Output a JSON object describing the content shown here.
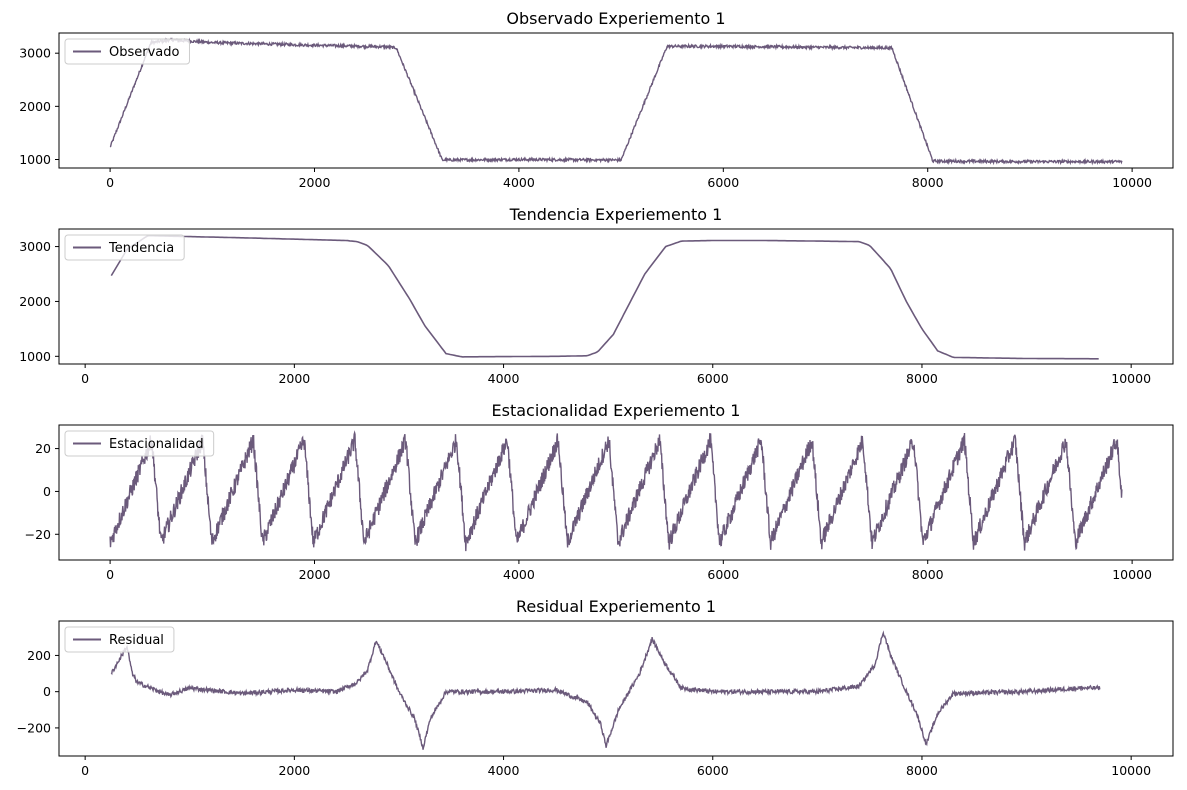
{
  "series_color": "#6b5a7b",
  "chart_data": [
    {
      "type": "line",
      "title": "Observado  Experiemento 1",
      "legend": {
        "label": "Observado",
        "loc": "upper-left"
      },
      "xlim": [
        -500,
        10400
      ],
      "ylim": [
        840,
        3380
      ],
      "xticks": [
        0,
        2000,
        4000,
        6000,
        8000,
        10000
      ],
      "yticks": [
        1000,
        2000,
        3000
      ],
      "noise": 25,
      "points": [
        [
          0,
          1230
        ],
        [
          400,
          3200
        ],
        [
          600,
          3250
        ],
        [
          1000,
          3200
        ],
        [
          2000,
          3150
        ],
        [
          2700,
          3120
        ],
        [
          2800,
          3100
        ],
        [
          3250,
          990
        ],
        [
          4000,
          1000
        ],
        [
          5000,
          990
        ],
        [
          5450,
          3130
        ],
        [
          6000,
          3130
        ],
        [
          7000,
          3110
        ],
        [
          7650,
          3100
        ],
        [
          8050,
          970
        ],
        [
          9000,
          960
        ],
        [
          9900,
          960
        ]
      ]
    },
    {
      "type": "line",
      "title": "Tendencia  Experiemento 1",
      "legend": {
        "label": "Tendencia",
        "loc": "upper-left"
      },
      "xlim": [
        -250,
        10400
      ],
      "ylim": [
        860,
        3320
      ],
      "xticks": [
        0,
        2000,
        4000,
        6000,
        8000,
        10000
      ],
      "yticks": [
        1000,
        2000,
        3000
      ],
      "noise": 0,
      "points": [
        [
          250,
          2470
        ],
        [
          400,
          2950
        ],
        [
          600,
          3200
        ],
        [
          800,
          3190
        ],
        [
          1500,
          3160
        ],
        [
          2500,
          3110
        ],
        [
          2600,
          3090
        ],
        [
          2700,
          3020
        ],
        [
          2900,
          2650
        ],
        [
          3100,
          2050
        ],
        [
          3250,
          1550
        ],
        [
          3450,
          1050
        ],
        [
          3600,
          990
        ],
        [
          4000,
          995
        ],
        [
          4500,
          1000
        ],
        [
          4800,
          1010
        ],
        [
          4900,
          1080
        ],
        [
          5050,
          1400
        ],
        [
          5200,
          1950
        ],
        [
          5350,
          2500
        ],
        [
          5550,
          3000
        ],
        [
          5700,
          3100
        ],
        [
          6000,
          3110
        ],
        [
          6500,
          3110
        ],
        [
          7000,
          3100
        ],
        [
          7400,
          3090
        ],
        [
          7500,
          3020
        ],
        [
          7700,
          2600
        ],
        [
          7850,
          2000
        ],
        [
          8000,
          1500
        ],
        [
          8150,
          1100
        ],
        [
          8300,
          980
        ],
        [
          9000,
          960
        ],
        [
          9700,
          955
        ]
      ]
    },
    {
      "type": "line",
      "title": "Estacionalidad  Experiemento 1",
      "legend": {
        "label": "Estacionalidad",
        "loc": "upper-left"
      },
      "xlim": [
        -500,
        10400
      ],
      "ylim": [
        -32,
        31
      ],
      "xticks": [
        0,
        2000,
        4000,
        6000,
        8000,
        10000
      ],
      "yticks": [
        -20,
        0,
        20
      ],
      "noise": 4,
      "period": 497,
      "x_end": 9900,
      "amplitude": 24
    },
    {
      "type": "line",
      "title": "Residual  Experiemento 1",
      "legend": {
        "label": "Residual",
        "loc": "upper-left"
      },
      "xlim": [
        -250,
        10400
      ],
      "ylim": [
        -355,
        390
      ],
      "xticks": [
        0,
        2000,
        4000,
        6000,
        8000,
        10000
      ],
      "yticks": [
        -200,
        0,
        200
      ],
      "noise": 12,
      "points": [
        [
          250,
          100
        ],
        [
          300,
          150
        ],
        [
          400,
          250
        ],
        [
          450,
          100
        ],
        [
          500,
          50
        ],
        [
          800,
          -20
        ],
        [
          1000,
          20
        ],
        [
          1500,
          -10
        ],
        [
          2000,
          10
        ],
        [
          2400,
          0
        ],
        [
          2600,
          50
        ],
        [
          2700,
          120
        ],
        [
          2780,
          280
        ],
        [
          2850,
          200
        ],
        [
          3000,
          0
        ],
        [
          3150,
          -150
        ],
        [
          3230,
          -310
        ],
        [
          3300,
          -150
        ],
        [
          3450,
          0
        ],
        [
          4000,
          0
        ],
        [
          4500,
          10
        ],
        [
          4800,
          -60
        ],
        [
          4930,
          -180
        ],
        [
          4980,
          -300
        ],
        [
          5100,
          -100
        ],
        [
          5300,
          100
        ],
        [
          5420,
          290
        ],
        [
          5550,
          150
        ],
        [
          5700,
          20
        ],
        [
          6000,
          0
        ],
        [
          6500,
          0
        ],
        [
          7000,
          0
        ],
        [
          7400,
          30
        ],
        [
          7550,
          150
        ],
        [
          7630,
          330
        ],
        [
          7700,
          200
        ],
        [
          7850,
          0
        ],
        [
          7950,
          -120
        ],
        [
          8040,
          -290
        ],
        [
          8150,
          -120
        ],
        [
          8300,
          -10
        ],
        [
          9000,
          0
        ],
        [
          9500,
          20
        ],
        [
          9700,
          20
        ]
      ]
    }
  ]
}
